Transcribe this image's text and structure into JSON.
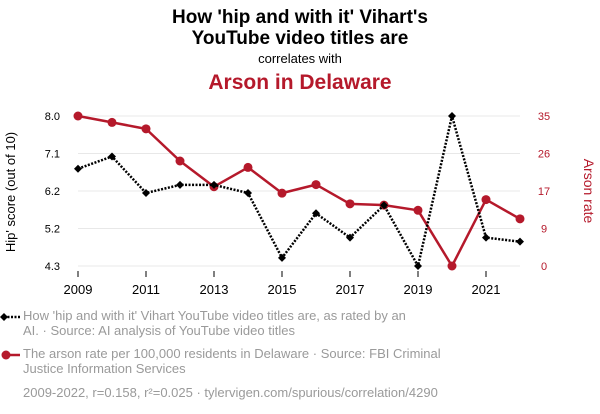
{
  "header": {
    "title_line1": "How 'hip and with it' Vihart's",
    "title_line2": "YouTube video titles are",
    "connector": "correlates with",
    "subtitle": "Arson in Delaware"
  },
  "colors": {
    "black_series": "#000000",
    "red_series": "#b5192b",
    "grid": "#e8e8e8",
    "legend_text": "#9a9a9a"
  },
  "chart_data": {
    "type": "line",
    "x": [
      2009,
      2010,
      2011,
      2012,
      2013,
      2014,
      2015,
      2016,
      2017,
      2018,
      2019,
      2020,
      2021,
      2022
    ],
    "x_ticks": [
      "2009",
      "2011",
      "2013",
      "2015",
      "2017",
      "2019",
      "2021"
    ],
    "x_tick_values": [
      2009,
      2011,
      2013,
      2015,
      2017,
      2019,
      2021
    ],
    "xlim": [
      2009,
      2022
    ],
    "series": [
      {
        "name": "Hip' score (out of 10)",
        "axis": "left",
        "marker": "diamond",
        "line_style": "dotted",
        "values": [
          6.7,
          7.0,
          6.1,
          6.3,
          6.3,
          6.1,
          4.5,
          5.6,
          5.0,
          5.8,
          4.3,
          8.0,
          5.0,
          4.9
        ]
      },
      {
        "name": "Arson rate",
        "axis": "right",
        "marker": "circle",
        "line_style": "solid",
        "values": [
          35.0,
          33.5,
          32.0,
          24.5,
          18.5,
          23.0,
          17.0,
          19.0,
          14.5,
          14.2,
          13.0,
          0.0,
          15.5,
          11.0
        ]
      }
    ],
    "y_left": {
      "label": "Hip' score (out of 10)",
      "ticks": [
        "4.3",
        "5.2",
        "6.2",
        "7.1",
        "8.0"
      ],
      "tick_values": [
        4.3,
        5.225,
        6.15,
        7.075,
        8.0
      ],
      "ylim": [
        4.3,
        8.0
      ]
    },
    "y_right": {
      "label": "Arson rate",
      "ticks": [
        "0",
        "9",
        "17",
        "26",
        "35"
      ],
      "tick_values": [
        0,
        8.75,
        17.5,
        26.25,
        35
      ],
      "ylim": [
        0,
        35
      ]
    }
  },
  "legend": {
    "item1": {
      "line1": "How 'hip and with it' Vihart YouTube video titles are, as rated by an",
      "line2": "AI. · Source: AI analysis of YouTube video titles"
    },
    "item2": {
      "line1": "The arson rate per 100,000 residents in Delaware · Source: FBI Criminal",
      "line2": "Justice Information Services"
    }
  },
  "footer": {
    "text": "2009-2022, r=0.158, r²=0.025 · tylervigen.com/spurious/correlation/4290"
  }
}
